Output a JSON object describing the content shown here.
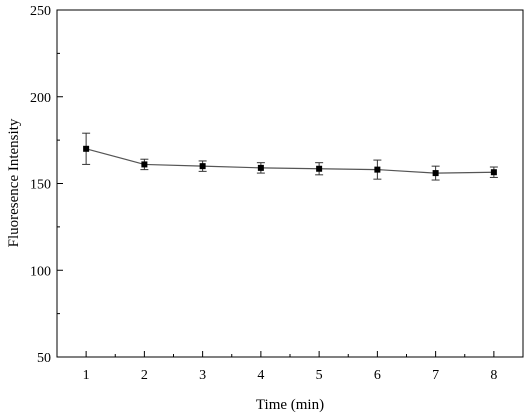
{
  "chart_data": {
    "type": "line",
    "title": "",
    "xlabel": "Time (min)",
    "ylabel": "Fluoresence Intensity",
    "xlim": [
      0.5,
      8.5
    ],
    "ylim": [
      50,
      250
    ],
    "xticks": [
      1,
      2,
      3,
      4,
      5,
      6,
      7,
      8
    ],
    "yticks": [
      50,
      100,
      150,
      200,
      250
    ],
    "grid": false,
    "legend": "none",
    "series": [
      {
        "x": [
          1,
          2,
          3,
          4,
          5,
          6,
          7,
          8
        ],
        "y": [
          170,
          161,
          160,
          159,
          158.5,
          158,
          156,
          156.5
        ],
        "error": [
          9,
          3,
          3,
          3,
          3.5,
          5.5,
          4,
          3
        ],
        "marker": "square",
        "line_color": "#555555",
        "marker_color": "#000000"
      }
    ]
  }
}
